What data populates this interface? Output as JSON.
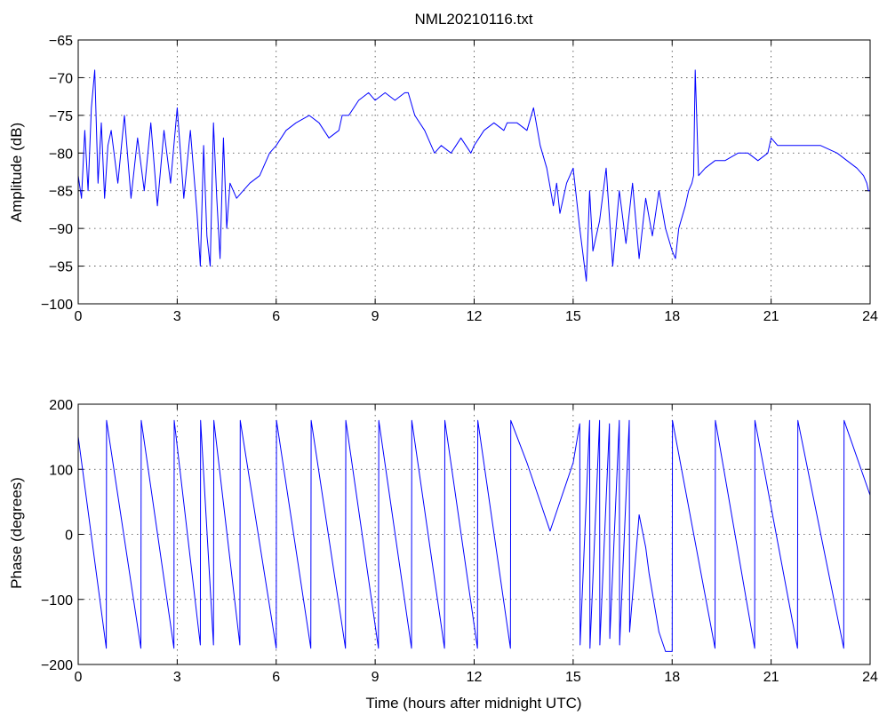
{
  "chart_data": [
    {
      "type": "line",
      "title": "NML20210116.txt",
      "xlabel": "",
      "ylabel": "Amplitude (dB)",
      "xlim": [
        0,
        24
      ],
      "ylim": [
        -100,
        -65
      ],
      "xticks": [
        "0",
        "3",
        "6",
        "9",
        "12",
        "15",
        "18",
        "21",
        "24"
      ],
      "yticks": [
        "-65",
        "-70",
        "-75",
        "-80",
        "-85",
        "-90",
        "-95",
        "-100"
      ],
      "grid": true,
      "color": "#0000ff",
      "series": [
        {
          "x": [
            0,
            0.1,
            0.2,
            0.3,
            0.4,
            0.5,
            0.6,
            0.7,
            0.8,
            0.9,
            1.0,
            1.2,
            1.4,
            1.6,
            1.8,
            2.0,
            2.2,
            2.4,
            2.6,
            2.8,
            3.0,
            3.2,
            3.4,
            3.6,
            3.7,
            3.8,
            3.9,
            4.0,
            4.1,
            4.2,
            4.3,
            4.4,
            4.5,
            4.6,
            4.8,
            5.0,
            5.2,
            5.5,
            5.8,
            6.0,
            6.3,
            6.6,
            7.0,
            7.3,
            7.6,
            7.9,
            8.0,
            8.2,
            8.5,
            8.8,
            9.0,
            9.3,
            9.6,
            9.9,
            10.0,
            10.2,
            10.5,
            10.8,
            11.0,
            11.3,
            11.6,
            11.9,
            12.0,
            12.3,
            12.6,
            12.9,
            13.0,
            13.3,
            13.6,
            13.8,
            14.0,
            14.2,
            14.4,
            14.5,
            14.6,
            14.8,
            15.0,
            15.2,
            15.4,
            15.5,
            15.6,
            15.8,
            16.0,
            16.2,
            16.4,
            16.6,
            16.8,
            17.0,
            17.2,
            17.4,
            17.6,
            17.8,
            18.0,
            18.1,
            18.2,
            18.4,
            18.5,
            18.6,
            18.65,
            18.7,
            18.8,
            19.0,
            19.3,
            19.6,
            20.0,
            20.3,
            20.6,
            20.9,
            21.0,
            21.2,
            21.5,
            22.0,
            22.5,
            23.0,
            23.3,
            23.6,
            23.8,
            23.9,
            23.95,
            24.0
          ],
          "y": [
            -83,
            -86,
            -77,
            -85,
            -74,
            -69,
            -84,
            -76,
            -86,
            -79,
            -77,
            -84,
            -75,
            -86,
            -78,
            -85,
            -76,
            -87,
            -77,
            -84,
            -74,
            -86,
            -77,
            -88,
            -95,
            -79,
            -91,
            -95,
            -76,
            -86,
            -94,
            -78,
            -90,
            -84,
            -86,
            -85,
            -84,
            -83,
            -80,
            -79,
            -77,
            -76,
            -75,
            -76,
            -78,
            -77,
            -75,
            -75,
            -73,
            -72,
            -73,
            -72,
            -73,
            -72,
            -72,
            -75,
            -77,
            -80,
            -79,
            -80,
            -78,
            -80,
            -79,
            -77,
            -76,
            -77,
            -76,
            -76,
            -77,
            -74,
            -79,
            -82,
            -87,
            -84,
            -88,
            -84,
            -82,
            -90,
            -97,
            -85,
            -93,
            -89,
            -82,
            -95,
            -85,
            -92,
            -84,
            -94,
            -86,
            -91,
            -85,
            -90,
            -93,
            -94,
            -90,
            -87,
            -85,
            -84,
            -83,
            -69,
            -83,
            -82,
            -81,
            -81,
            -80,
            -80,
            -81,
            -80,
            -78,
            -79,
            -79,
            -79,
            -79,
            -80,
            -81,
            -82,
            -83,
            -84,
            -85,
            -85
          ]
        }
      ]
    },
    {
      "type": "line",
      "title": "",
      "xlabel": "Time (hours after midnight UTC)",
      "ylabel": "Phase (degrees)",
      "xlim": [
        0,
        24
      ],
      "ylim": [
        -200,
        200
      ],
      "xticks": [
        "0",
        "3",
        "6",
        "9",
        "12",
        "15",
        "18",
        "21",
        "24"
      ],
      "yticks": [
        "200",
        "100",
        "0",
        "-100",
        "-200"
      ],
      "grid": true,
      "color": "#0000ff",
      "series": [
        {
          "x": [
            0,
            0.85,
            0.86,
            1.9,
            1.91,
            2.9,
            2.91,
            3.7,
            3.71,
            4.1,
            4.11,
            4.9,
            4.91,
            6.0,
            6.01,
            7.05,
            7.06,
            8.1,
            8.11,
            9.1,
            9.11,
            10.1,
            10.11,
            11.1,
            11.11,
            12.1,
            12.11,
            13.1,
            13.11,
            13.6,
            14.0,
            14.3,
            14.4,
            14.6,
            15.0,
            15.2,
            15.21,
            15.5,
            15.51,
            15.8,
            15.81,
            16.1,
            16.11,
            16.4,
            16.41,
            16.7,
            16.71,
            17.0,
            17.2,
            17.3,
            17.5,
            17.6,
            17.8,
            18.0,
            18.01,
            19.3,
            19.31,
            20.5,
            20.51,
            21.8,
            21.81,
            23.2,
            23.21,
            24.0
          ],
          "y": [
            150,
            -175,
            175,
            -175,
            175,
            -175,
            175,
            -170,
            175,
            -170,
            175,
            -170,
            175,
            -175,
            175,
            -175,
            175,
            -175,
            175,
            -175,
            175,
            -175,
            175,
            -175,
            175,
            -175,
            175,
            -175,
            175,
            110,
            50,
            5,
            20,
            50,
            110,
            170,
            -170,
            175,
            -175,
            175,
            -170,
            170,
            -160,
            175,
            -170,
            175,
            -150,
            30,
            -20,
            -60,
            -120,
            -150,
            -180,
            -180,
            175,
            -175,
            175,
            -175,
            175,
            -175,
            175,
            -175,
            175,
            60
          ]
        }
      ]
    }
  ]
}
